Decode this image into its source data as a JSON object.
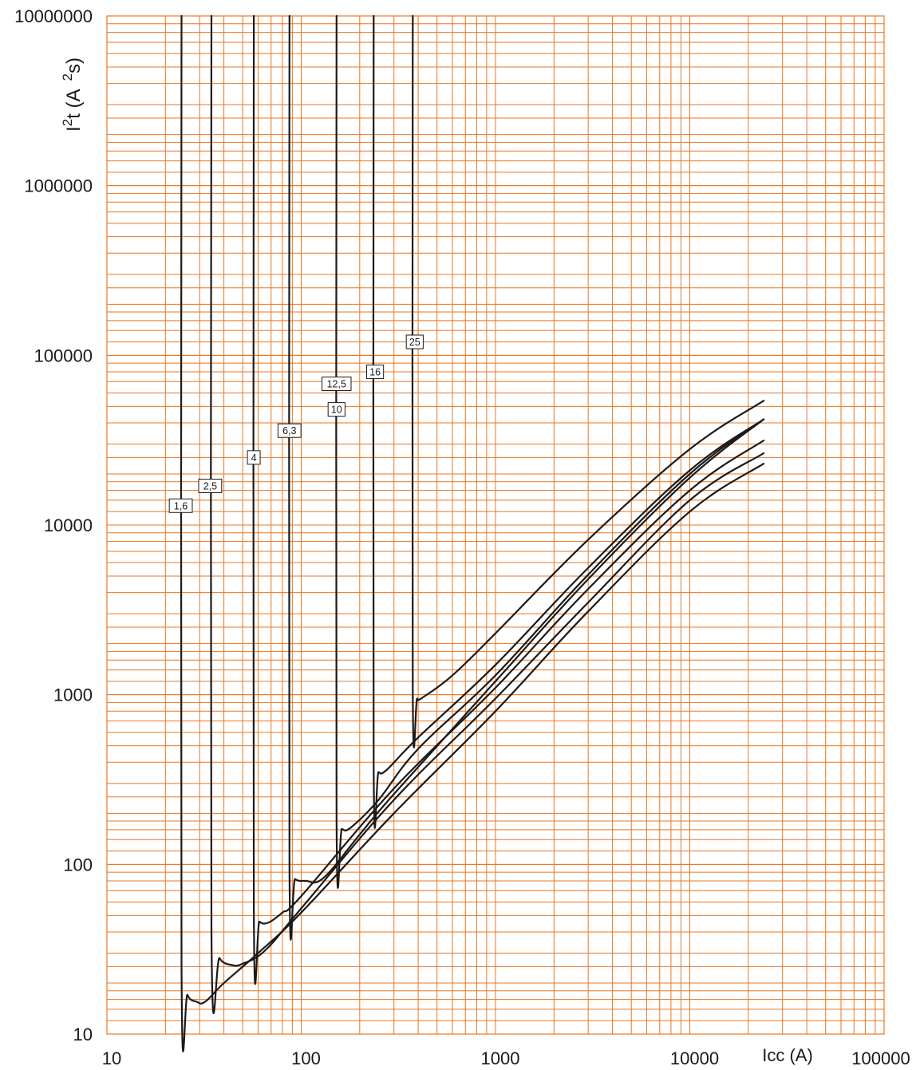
{
  "chart_data": {
    "type": "line",
    "x_scale": "log",
    "y_scale": "log",
    "xlim": [
      10,
      100000
    ],
    "ylim": [
      10,
      10000000
    ],
    "xlabel": "Icc (A)",
    "ylabel_base": "I",
    "ylabel_sup1": "2",
    "ylabel_mid": "t (A",
    "ylabel_sup2": "2",
    "ylabel_end": "s)",
    "grid": true,
    "grid_color": "#e87722",
    "line_color": "#1a1a1a",
    "x_ticks": [
      {
        "value": 10,
        "label": "10"
      },
      {
        "value": 100,
        "label": "100"
      },
      {
        "value": 1000,
        "label": "1000"
      },
      {
        "value": 10000,
        "label": "10000"
      },
      {
        "value": 100000,
        "label": "100000"
      }
    ],
    "y_ticks": [
      {
        "value": 10,
        "label": "10"
      },
      {
        "value": 100,
        "label": "100"
      },
      {
        "value": 1000,
        "label": "1000"
      },
      {
        "value": 10000,
        "label": "10000"
      },
      {
        "value": 100000,
        "label": "100000"
      },
      {
        "value": 1000000,
        "label": "1000000"
      },
      {
        "value": 10000000,
        "label": "10000000"
      }
    ],
    "series": [
      {
        "name": "1,6",
        "label_at": [
          24,
          13000
        ],
        "points": [
          [
            24.2,
            10000000
          ],
          [
            24.2,
            25
          ],
          [
            26,
            17
          ],
          [
            29,
            15.5
          ],
          [
            32,
            15.5
          ],
          [
            40,
            20
          ],
          [
            60,
            30
          ],
          [
            100,
            52
          ],
          [
            300,
            200
          ],
          [
            1000,
            800
          ],
          [
            3000,
            3100
          ],
          [
            10000,
            12000
          ],
          [
            24000,
            23000
          ]
        ]
      },
      {
        "name": "2,5",
        "label_at": [
          34,
          17000
        ],
        "points": [
          [
            34.5,
            10000000
          ],
          [
            34.5,
            40
          ],
          [
            38,
            28
          ],
          [
            44,
            25.5
          ],
          [
            50,
            26
          ],
          [
            65,
            31
          ],
          [
            100,
            55
          ],
          [
            300,
            240
          ],
          [
            1000,
            950
          ],
          [
            3000,
            3500
          ],
          [
            10000,
            14000
          ],
          [
            24000,
            26500
          ]
        ]
      },
      {
        "name": "4",
        "label_at": [
          57,
          25000
        ],
        "points": [
          [
            57,
            10000000
          ],
          [
            57,
            55
          ],
          [
            61,
            46
          ],
          [
            68,
            45.5
          ],
          [
            80,
            52
          ],
          [
            100,
            65
          ],
          [
            300,
            280
          ],
          [
            1000,
            1100
          ],
          [
            3000,
            4200
          ],
          [
            10000,
            16000
          ],
          [
            24000,
            31500
          ]
        ]
      },
      {
        "name": "6,3",
        "label_at": [
          87,
          36000
        ],
        "points": [
          [
            87,
            10000000
          ],
          [
            87,
            95
          ],
          [
            93,
            82
          ],
          [
            105,
            80
          ],
          [
            130,
            83
          ],
          [
            200,
            150
          ],
          [
            300,
            260
          ],
          [
            1000,
            1200
          ],
          [
            3000,
            4800
          ],
          [
            10000,
            19000
          ],
          [
            24000,
            42000
          ]
        ]
      },
      {
        "name": "10",
        "label_at": [
          152,
          48000
        ],
        "points": [
          [
            152,
            10000000
          ],
          [
            152,
            180
          ],
          [
            162,
            162
          ],
          [
            180,
            165
          ],
          [
            250,
            240
          ],
          [
            400,
            480
          ],
          [
            1000,
            1300
          ],
          [
            3000,
            5100
          ],
          [
            10000,
            20000
          ],
          [
            24000,
            42000
          ]
        ]
      },
      {
        "name": "12,5",
        "label_at": [
          152,
          68000
        ],
        "points": []
      },
      {
        "name": "16",
        "label_at": [
          240,
          80000
        ],
        "points": [
          [
            236,
            10000000
          ],
          [
            236,
            380
          ],
          [
            250,
            350
          ],
          [
            275,
            360
          ],
          [
            400,
            560
          ],
          [
            1000,
            1500
          ],
          [
            3000,
            5600
          ],
          [
            10000,
            21000
          ],
          [
            24000,
            42000
          ]
        ]
      },
      {
        "name": "25",
        "label_at": [
          384,
          120000
        ],
        "points": [
          [
            375,
            10000000
          ],
          [
            375,
            1050
          ],
          [
            395,
            950
          ],
          [
            420,
            960
          ],
          [
            600,
            1300
          ],
          [
            1000,
            2300
          ],
          [
            3000,
            8200
          ],
          [
            10000,
            28000
          ],
          [
            24000,
            54000
          ]
        ]
      }
    ]
  }
}
